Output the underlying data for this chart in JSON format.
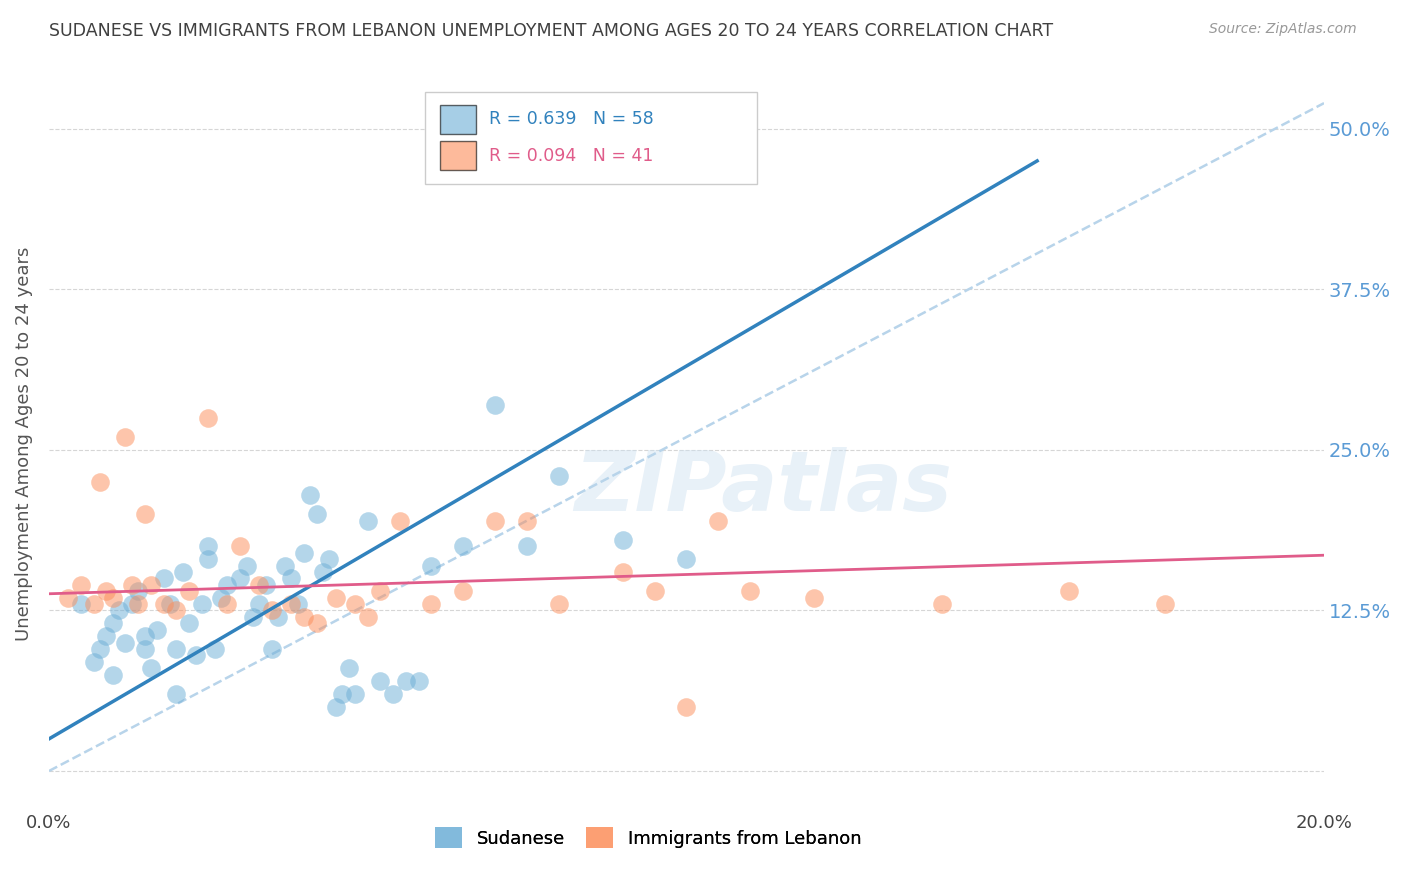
{
  "title": "SUDANESE VS IMMIGRANTS FROM LEBANON UNEMPLOYMENT AMONG AGES 20 TO 24 YEARS CORRELATION CHART",
  "source": "Source: ZipAtlas.com",
  "ylabel": "Unemployment Among Ages 20 to 24 years",
  "xlim": [
    0.0,
    0.2
  ],
  "ylim": [
    -0.03,
    0.54
  ],
  "yticks": [
    0.0,
    0.125,
    0.25,
    0.375,
    0.5
  ],
  "ytick_labels": [
    "",
    "12.5%",
    "25.0%",
    "37.5%",
    "50.0%"
  ],
  "xticks": [
    0.0,
    0.025,
    0.05,
    0.075,
    0.1,
    0.125,
    0.15,
    0.175,
    0.2
  ],
  "xtick_labels": [
    "0.0%",
    "",
    "",
    "",
    "",
    "",
    "",
    "",
    "20.0%"
  ],
  "blue_R": 0.639,
  "blue_N": 58,
  "pink_R": 0.094,
  "pink_N": 41,
  "blue_color": "#6baed6",
  "pink_color": "#fc8d59",
  "blue_line_color": "#3182bd",
  "pink_line_color": "#e05c8a",
  "ref_line_color": "#b8d4ea",
  "watermark_text": "ZIPatlas",
  "blue_scatter_x": [
    0.005,
    0.007,
    0.008,
    0.009,
    0.01,
    0.01,
    0.011,
    0.012,
    0.013,
    0.014,
    0.015,
    0.015,
    0.016,
    0.017,
    0.018,
    0.019,
    0.02,
    0.02,
    0.021,
    0.022,
    0.023,
    0.024,
    0.025,
    0.025,
    0.026,
    0.027,
    0.028,
    0.03,
    0.031,
    0.032,
    0.033,
    0.034,
    0.035,
    0.036,
    0.037,
    0.038,
    0.039,
    0.04,
    0.041,
    0.042,
    0.043,
    0.044,
    0.045,
    0.046,
    0.047,
    0.048,
    0.05,
    0.052,
    0.054,
    0.056,
    0.058,
    0.06,
    0.065,
    0.07,
    0.075,
    0.08,
    0.09,
    0.1
  ],
  "blue_scatter_y": [
    0.13,
    0.085,
    0.095,
    0.105,
    0.075,
    0.115,
    0.125,
    0.1,
    0.13,
    0.14,
    0.105,
    0.095,
    0.08,
    0.11,
    0.15,
    0.13,
    0.06,
    0.095,
    0.155,
    0.115,
    0.09,
    0.13,
    0.165,
    0.175,
    0.095,
    0.135,
    0.145,
    0.15,
    0.16,
    0.12,
    0.13,
    0.145,
    0.095,
    0.12,
    0.16,
    0.15,
    0.13,
    0.17,
    0.215,
    0.2,
    0.155,
    0.165,
    0.05,
    0.06,
    0.08,
    0.06,
    0.195,
    0.07,
    0.06,
    0.07,
    0.07,
    0.16,
    0.175,
    0.285,
    0.175,
    0.23,
    0.18,
    0.165
  ],
  "pink_scatter_x": [
    0.003,
    0.005,
    0.007,
    0.008,
    0.009,
    0.01,
    0.012,
    0.013,
    0.014,
    0.015,
    0.016,
    0.018,
    0.02,
    0.022,
    0.025,
    0.028,
    0.03,
    0.033,
    0.035,
    0.038,
    0.04,
    0.042,
    0.045,
    0.048,
    0.05,
    0.052,
    0.055,
    0.06,
    0.065,
    0.07,
    0.075,
    0.08,
    0.09,
    0.095,
    0.1,
    0.105,
    0.11,
    0.12,
    0.14,
    0.16,
    0.175
  ],
  "pink_scatter_y": [
    0.135,
    0.145,
    0.13,
    0.225,
    0.14,
    0.135,
    0.26,
    0.145,
    0.13,
    0.2,
    0.145,
    0.13,
    0.125,
    0.14,
    0.275,
    0.13,
    0.175,
    0.145,
    0.125,
    0.13,
    0.12,
    0.115,
    0.135,
    0.13,
    0.12,
    0.14,
    0.195,
    0.13,
    0.14,
    0.195,
    0.195,
    0.13,
    0.155,
    0.14,
    0.05,
    0.195,
    0.14,
    0.135,
    0.13,
    0.14,
    0.13
  ],
  "blue_line_x0": 0.0,
  "blue_line_x1": 0.155,
  "blue_line_y0": 0.025,
  "blue_line_y1": 0.475,
  "pink_line_x0": 0.0,
  "pink_line_x1": 0.2,
  "pink_line_y0": 0.138,
  "pink_line_y1": 0.168,
  "ref_line_x0": 0.0,
  "ref_line_x1": 0.2,
  "ref_line_y0": 0.0,
  "ref_line_y1": 0.52,
  "background_color": "#ffffff",
  "grid_color": "#cccccc",
  "title_color": "#404040",
  "axis_label_color": "#555555",
  "right_tick_color": "#5b9bd5",
  "source_color": "#999999"
}
